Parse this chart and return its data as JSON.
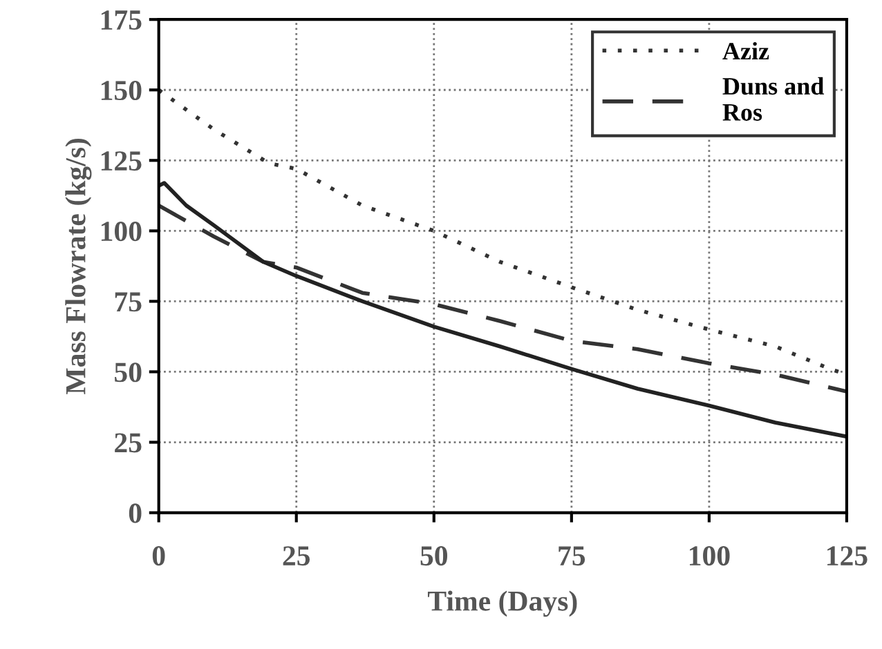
{
  "chart_data": {
    "type": "line",
    "xlabel": "Time (Days)",
    "ylabel": "Mass Flowrate (kg/s)",
    "xlim": [
      0,
      125
    ],
    "ylim": [
      0,
      175
    ],
    "xticks": [
      0,
      25,
      50,
      75,
      100,
      125
    ],
    "yticks": [
      0,
      25,
      50,
      75,
      100,
      125,
      150,
      175
    ],
    "grid": true,
    "legend": "top right",
    "marker": "none",
    "series": [
      {
        "name": "Aziz",
        "color": "#333333",
        "line_style": "dotted",
        "x": [
          0,
          10,
          20,
          25,
          37,
          50,
          62,
          75,
          87,
          100,
          112,
          122,
          125
        ],
        "values": [
          150,
          136,
          124,
          122,
          109,
          100,
          89,
          80,
          72,
          65,
          59,
          51,
          49
        ]
      },
      {
        "name": "Duns and\nRos",
        "color": "#333333",
        "line_style": "dashed",
        "x": [
          0,
          10,
          19,
          25,
          37,
          50,
          62,
          75,
          87,
          100,
          112,
          125
        ],
        "values": [
          109,
          98,
          89,
          87,
          78,
          74,
          68,
          61,
          58,
          53,
          49,
          43
        ]
      },
      {
        "color": "#222222",
        "line_style": "solid",
        "x": [
          0,
          1,
          5,
          10,
          19,
          25,
          37,
          50,
          62,
          75,
          87,
          100,
          112,
          125
        ],
        "values": [
          116,
          117,
          109,
          102,
          89,
          84,
          75,
          66,
          59,
          51,
          44,
          38,
          32,
          27
        ]
      }
    ]
  }
}
